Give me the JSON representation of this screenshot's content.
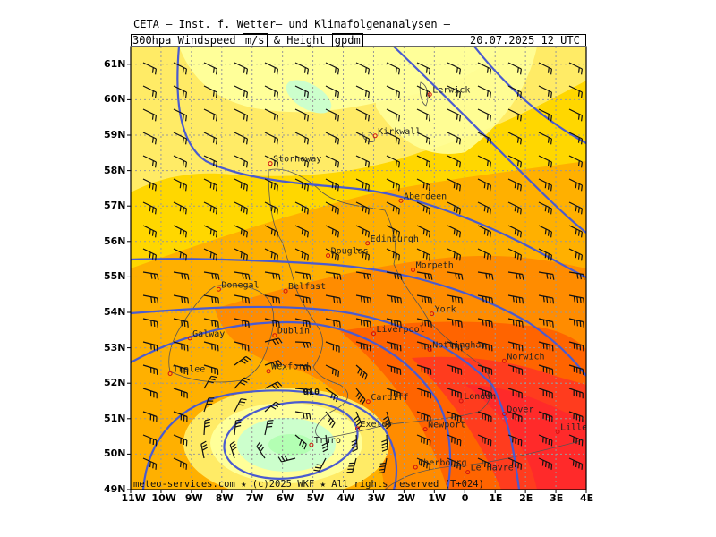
{
  "header": {
    "title": "CETA – Inst. f. Wetter– und Klimafolgenanalysen –",
    "product": "300hpa Windspeed",
    "unit1": "m/s",
    "amp": "& Height",
    "unit2": "gpdm",
    "valid": "20.07.2025 12 UTC"
  },
  "footer": "meteo-services.com ★ (c)2025 WKF ★ All rights reserved (T+024)",
  "contour_label": "910",
  "lat_labels": [
    "61N",
    "60N",
    "59N",
    "58N",
    "57N",
    "56N",
    "55N",
    "54N",
    "53N",
    "52N",
    "51N",
    "50N",
    "49N"
  ],
  "lon_labels": [
    "11W",
    "10W",
    "9W",
    "8W",
    "7W",
    "6W",
    "5W",
    "4W",
    "3W",
    "2W",
    "1W",
    "0",
    "1E",
    "2E",
    "3E",
    "4E"
  ],
  "cities": [
    {
      "name": "Lerwick",
      "lon": -1.15,
      "lat": 60.15
    },
    {
      "name": "Kirkwall",
      "lon": -2.95,
      "lat": 58.98
    },
    {
      "name": "Stornoway",
      "lon": -6.4,
      "lat": 58.2
    },
    {
      "name": "Aberdeen",
      "lon": -2.1,
      "lat": 57.15
    },
    {
      "name": "Edinburgh",
      "lon": -3.2,
      "lat": 55.95
    },
    {
      "name": "Douglas",
      "lon": -4.5,
      "lat": 55.6
    },
    {
      "name": "Morpeth",
      "lon": -1.7,
      "lat": 55.2
    },
    {
      "name": "Donegal",
      "lon": -8.1,
      "lat": 54.65
    },
    {
      "name": "Belfast",
      "lon": -5.9,
      "lat": 54.6
    },
    {
      "name": "York",
      "lon": -1.08,
      "lat": 53.96
    },
    {
      "name": "Liverpool",
      "lon": -3.0,
      "lat": 53.4
    },
    {
      "name": "Dublin",
      "lon": -6.26,
      "lat": 53.35
    },
    {
      "name": "Galway",
      "lon": -9.05,
      "lat": 53.27
    },
    {
      "name": "Nottingham",
      "lon": -1.15,
      "lat": 52.95
    },
    {
      "name": "Norwich",
      "lon": 1.3,
      "lat": 52.63
    },
    {
      "name": "Wexford",
      "lon": -6.46,
      "lat": 52.34
    },
    {
      "name": "Tralee",
      "lon": -9.7,
      "lat": 52.27
    },
    {
      "name": "Cardiff",
      "lon": -3.18,
      "lat": 51.48
    },
    {
      "name": "London",
      "lon": -0.12,
      "lat": 51.5
    },
    {
      "name": "Dover",
      "lon": 1.3,
      "lat": 51.13
    },
    {
      "name": "Exeter",
      "lon": -3.53,
      "lat": 50.72
    },
    {
      "name": "Newport",
      "lon": -1.3,
      "lat": 50.7
    },
    {
      "name": "Lille",
      "lon": 3.06,
      "lat": 50.63
    },
    {
      "name": "Truro",
      "lon": -5.05,
      "lat": 50.26
    },
    {
      "name": "Le Havre",
      "lon": 0.1,
      "lat": 49.49
    },
    {
      "name": "Cherbourg",
      "lon": -1.62,
      "lat": 49.63
    }
  ],
  "colors": {
    "light_yellow": "#ffff99",
    "yellow": "#ffeb66",
    "gold": "#ffd700",
    "orange_light": "#ffb000",
    "orange": "#ff8c00",
    "orange_red": "#ff6400",
    "red": "#ff3c1e",
    "green_light": "#ccffcc",
    "green": "#99ff99",
    "contour": "#4a5bd0"
  }
}
